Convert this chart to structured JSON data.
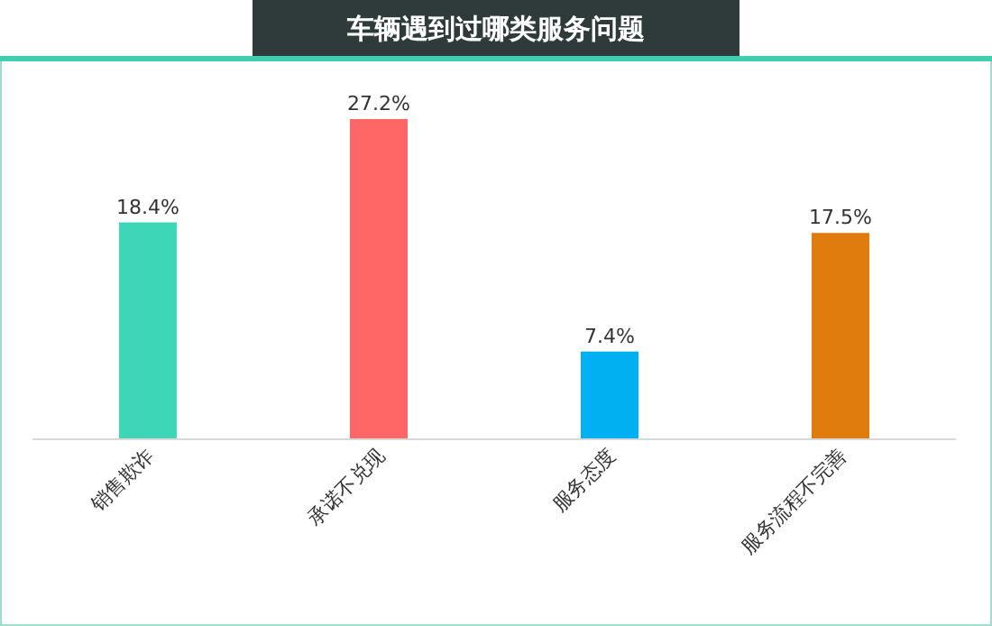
{
  "chart_data": {
    "type": "bar",
    "title": "车辆遇到过哪类服务问题",
    "categories": [
      "销售欺诈",
      "承诺不兑现",
      "服务态度",
      "服务流程不完善"
    ],
    "values": [
      18.4,
      27.2,
      7.4,
      17.5
    ],
    "colors": [
      "#3dd6b7",
      "#ff6666",
      "#00b0f0",
      "#e07b0d"
    ],
    "value_labels": [
      "18.4%",
      "27.2%",
      "7.4%",
      "17.5%"
    ]
  }
}
